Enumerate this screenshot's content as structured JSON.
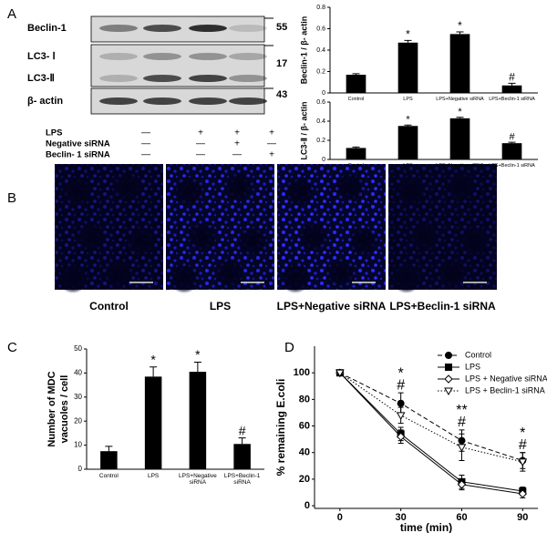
{
  "panel_labels": [
    "A",
    "B",
    "C",
    "D"
  ],
  "blot": {
    "bands": [
      "Beclin-1",
      "LC3- Ⅰ",
      "LC3-Ⅱ",
      "β- actin"
    ],
    "markers": [
      "55",
      "17",
      "43"
    ],
    "treatments": [
      {
        "label": "LPS",
        "signs": [
          "—",
          "+",
          "+",
          "+"
        ]
      },
      {
        "label": "Negative siRNA",
        "signs": [
          "—",
          "—",
          "+",
          "—"
        ]
      },
      {
        "label": "Beclin- 1 siRNA",
        "signs": [
          "—",
          "—",
          "—",
          "+"
        ]
      }
    ]
  },
  "micrographs": {
    "labels": [
      "Control",
      "LPS",
      "LPS+Negative siRNA",
      "LPS+Beclin-1 siRNA"
    ]
  },
  "chart_data": [
    {
      "type": "bar",
      "ylabel": "Beclin-1 / β- actin",
      "categories": [
        "Control",
        "LPS",
        "LPS+Negative siRNA",
        "LPS+Beclin-1 siRNA"
      ],
      "values": [
        0.17,
        0.47,
        0.55,
        0.07
      ],
      "errors": [
        0.01,
        0.02,
        0.02,
        0.02
      ],
      "annotations": [
        null,
        "*",
        "*",
        "#"
      ],
      "color": "#000000",
      "ylim": [
        0,
        0.8
      ],
      "yticks": [
        0,
        0.2,
        0.4,
        0.6,
        0.8
      ]
    },
    {
      "type": "bar",
      "ylabel": "LC3-Ⅱ / β- actin",
      "categories": [
        "Control",
        "LPS",
        "LPS+Negative siRNA",
        "LPS+Beclin-1 siRNA"
      ],
      "values": [
        0.12,
        0.35,
        0.43,
        0.17
      ],
      "errors": [
        0.01,
        0.01,
        0.01,
        0.01
      ],
      "annotations": [
        null,
        "*",
        "*",
        "#"
      ],
      "color": "#000000",
      "ylim": [
        0,
        0.6
      ],
      "yticks": [
        0,
        0.2,
        0.4,
        0.6
      ]
    },
    {
      "type": "bar",
      "ylabel": [
        "Number of MDC",
        "vacuoles / cell"
      ],
      "categories": [
        "Control",
        "LPS",
        "LPS+Negative siRNA",
        "LPS+Beclin-1 siRNA"
      ],
      "values": [
        7.5,
        38.5,
        40.5,
        10.5
      ],
      "errors": [
        2,
        4,
        4,
        2.5
      ],
      "annotations": [
        null,
        "*",
        "*",
        "#"
      ],
      "color": "#000000",
      "ylim": [
        0,
        50
      ],
      "yticks": [
        0,
        10,
        20,
        30,
        40,
        50
      ]
    },
    {
      "type": "line",
      "xlabel": "time (min)",
      "ylabel": "% remaining E.coli",
      "x": [
        0,
        30,
        60,
        90
      ],
      "series": [
        {
          "name": "Control",
          "color": "#000000",
          "marker": "circle",
          "linestyle": "dashed",
          "values": [
            100,
            77,
            49,
            34
          ],
          "errors": [
            1,
            8,
            8,
            6
          ]
        },
        {
          "name": "LPS",
          "color": "#000000",
          "marker": "square",
          "linestyle": "solid",
          "values": [
            100,
            54,
            18,
            11
          ],
          "errors": [
            1,
            5,
            5,
            3
          ]
        },
        {
          "name": "LPS + Negative siRNA",
          "color": "#000000",
          "marker": "diamond",
          "linestyle": "solid",
          "values": [
            100,
            52,
            16,
            9
          ],
          "errors": [
            1,
            5,
            4,
            3
          ]
        },
        {
          "name": "LPS + Beclin-1 siRNA",
          "color": "#000000",
          "marker": "triangle-down",
          "linestyle": "dotted",
          "values": [
            100,
            68,
            44,
            33
          ],
          "errors": [
            1,
            6,
            10,
            7
          ]
        }
      ],
      "annotations": [
        {
          "x": 30,
          "labels": [
            "*",
            "#"
          ]
        },
        {
          "x": 60,
          "labels": [
            "**",
            "#"
          ]
        },
        {
          "x": 90,
          "labels": [
            "*",
            "#"
          ]
        }
      ],
      "xlim": [
        -12.5,
        97.5
      ],
      "xticks": [
        0,
        30,
        60,
        90
      ],
      "ylim": [
        -2,
        120
      ],
      "yticks": [
        0,
        20,
        40,
        60,
        80,
        100
      ],
      "legend": "upper right"
    }
  ]
}
